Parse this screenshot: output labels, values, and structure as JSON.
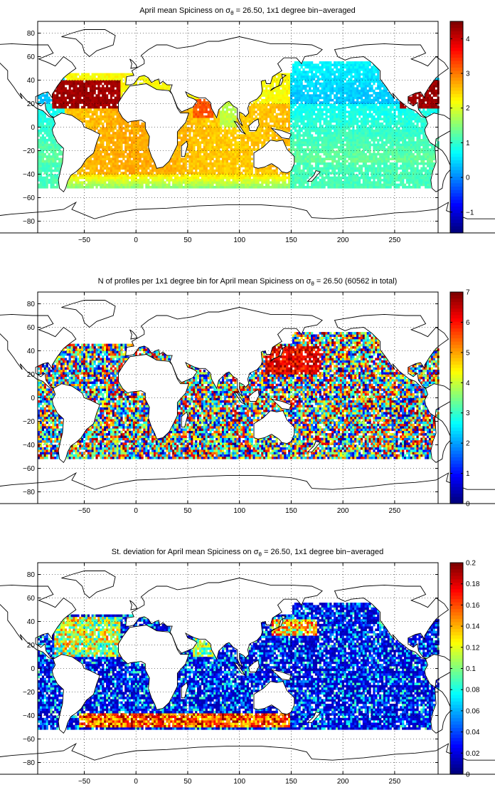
{
  "figure": {
    "x_ticks": [
      -50,
      0,
      50,
      100,
      150,
      200,
      250
    ],
    "y_ticks": [
      80,
      60,
      40,
      20,
      0,
      -20,
      -40,
      -60,
      -80
    ],
    "xlim": [
      -95,
      292
    ],
    "ylim": [
      -90,
      90
    ]
  },
  "chart_data": [
    {
      "type": "heatmap",
      "title_prefix": "April mean Spiciness on ",
      "title_sigma": "σ",
      "title_sub": "θ",
      "title_suffix": " = 26.50, 1x1 degree bin−averaged",
      "colorbar": {
        "range": [
          -1.6,
          4.5
        ],
        "ticks": [
          "4",
          "3",
          "2",
          "1",
          "0",
          "−1"
        ],
        "tick_values": [
          4,
          3,
          2,
          1,
          0,
          -1
        ]
      },
      "xlim": [
        -95,
        292
      ],
      "ylim": [
        -90,
        90
      ],
      "grid": true,
      "colormap": "jet"
    },
    {
      "type": "heatmap",
      "title_prefix": "N of profiles per 1x1 degree bin for April mean Spiciness on ",
      "title_sigma": "σ",
      "title_sub": "θ",
      "title_suffix": " = 26.50 (60562 in total)",
      "colorbar": {
        "range": [
          0,
          7
        ],
        "ticks": [
          "7",
          "6",
          "5",
          "4",
          "3",
          "2",
          "1",
          "0"
        ],
        "tick_values": [
          7,
          6,
          5,
          4,
          3,
          2,
          1,
          0
        ]
      },
      "xlim": [
        -95,
        292
      ],
      "ylim": [
        -90,
        90
      ],
      "grid": true,
      "colormap": "jet"
    },
    {
      "type": "heatmap",
      "title_prefix": "St. deviation for April mean Spiciness on ",
      "title_sigma": "σ",
      "title_sub": "θ",
      "title_suffix": " = 26.50, 1x1 degree bin−averaged",
      "colorbar": {
        "range": [
          0,
          0.2
        ],
        "ticks": [
          "0.2",
          "0.18",
          "0.16",
          "0.14",
          "0.12",
          "0.1",
          "0.08",
          "0.06",
          "0.04",
          "0.02",
          "0"
        ],
        "tick_values": [
          0.2,
          0.18,
          0.16,
          0.14,
          0.12,
          0.1,
          0.08,
          0.06,
          0.04,
          0.02,
          0
        ]
      },
      "xlim": [
        -95,
        292
      ],
      "ylim": [
        -90,
        90
      ],
      "grid": true,
      "colormap": "jet"
    }
  ]
}
